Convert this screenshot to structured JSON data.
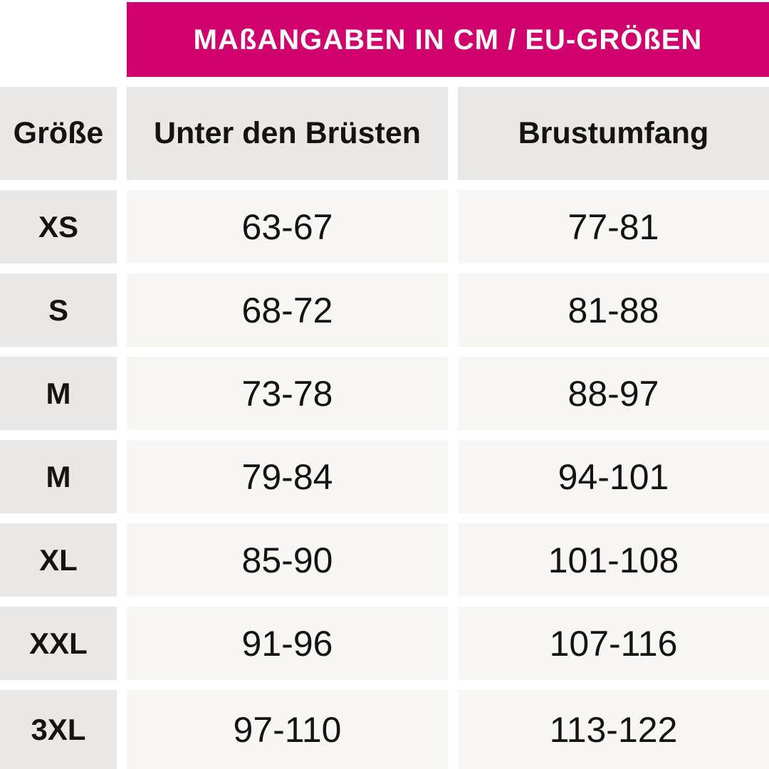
{
  "colors": {
    "banner_bg": "#d0016c",
    "banner_text": "#ffffff",
    "cell_gray": "#eae8e6",
    "cell_light": "#f7f6f3",
    "text_dark": "#161412",
    "page_bg": "#ffffff"
  },
  "banner": {
    "title": "MAßANGABEN IN CM / EU-GRÖßEN"
  },
  "table": {
    "columns": [
      {
        "label": "Größe"
      },
      {
        "label": "Unter den Brüsten"
      },
      {
        "label": "Brustumfang"
      }
    ],
    "rows": [
      {
        "size": "XS",
        "underbust": "63-67",
        "bust": "77-81"
      },
      {
        "size": "S",
        "underbust": "68-72",
        "bust": "81-88"
      },
      {
        "size": "M",
        "underbust": "73-78",
        "bust": "88-97"
      },
      {
        "size": "M",
        "underbust": "79-84",
        "bust": "94-101"
      },
      {
        "size": "XL",
        "underbust": "85-90",
        "bust": "101-108"
      },
      {
        "size": "XXL",
        "underbust": "91-96",
        "bust": "107-116"
      },
      {
        "size": "3XL",
        "underbust": "97-110",
        "bust": "113-122"
      }
    ]
  },
  "chart_data": {
    "type": "table",
    "title": "MAßANGABEN IN CM / EU-GRÖßEN",
    "columns": [
      "Größe",
      "Unter den Brüsten",
      "Brustumfang"
    ],
    "rows": [
      [
        "XS",
        "63-67",
        "77-81"
      ],
      [
        "S",
        "68-72",
        "81-88"
      ],
      [
        "M",
        "73-78",
        "88-97"
      ],
      [
        "M",
        "79-84",
        "94-101"
      ],
      [
        "XL",
        "85-90",
        "101-108"
      ],
      [
        "XXL",
        "91-96",
        "107-116"
      ],
      [
        "3XL",
        "97-110",
        "113-122"
      ]
    ],
    "units": "cm",
    "layout_hints": {
      "header_banner": "magenta, spans columns 2-3 and right edge",
      "grid_gaps": "white 14px gutters between all cells",
      "last_row": "cut off at bottom image edge"
    }
  }
}
